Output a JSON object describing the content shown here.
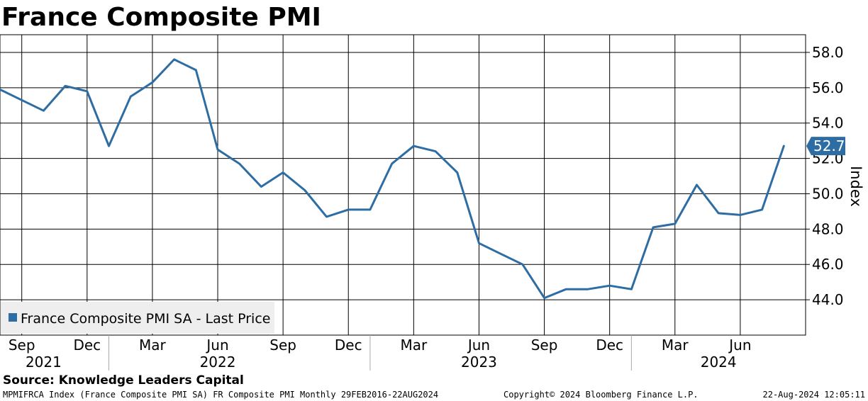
{
  "chart_data": {
    "type": "line",
    "title": "France Composite PMI",
    "ylabel": "Index",
    "ylim": [
      42.0,
      59.0
    ],
    "y_ticks": [
      "58.0",
      "56.0",
      "54.0",
      "52.0",
      "50.0",
      "48.0",
      "46.0",
      "44.0"
    ],
    "x_range": [
      "2021-08",
      "2024-09"
    ],
    "x_month_ticks": [
      {
        "date": "2021-09",
        "label": "Sep"
      },
      {
        "date": "2021-12",
        "label": "Dec"
      },
      {
        "date": "2022-03",
        "label": "Mar"
      },
      {
        "date": "2022-06",
        "label": "Jun"
      },
      {
        "date": "2022-09",
        "label": "Sep"
      },
      {
        "date": "2022-12",
        "label": "Dec"
      },
      {
        "date": "2023-03",
        "label": "Mar"
      },
      {
        "date": "2023-06",
        "label": "Jun"
      },
      {
        "date": "2023-09",
        "label": "Sep"
      },
      {
        "date": "2023-12",
        "label": "Dec"
      },
      {
        "date": "2024-03",
        "label": "Mar"
      },
      {
        "date": "2024-06",
        "label": "Jun"
      }
    ],
    "x_year_labels": [
      {
        "label": "2021",
        "center": "2021-10"
      },
      {
        "label": "2022",
        "center": "2022-06"
      },
      {
        "label": "2023",
        "center": "2023-06"
      },
      {
        "label": "2024",
        "center": "2024-05"
      }
    ],
    "x_year_separators": [
      "2022-01",
      "2023-01",
      "2024-01"
    ],
    "grid": true,
    "series": [
      {
        "name": "France Composite PMI SA - Last Price",
        "color": "#2e6da4",
        "points": [
          [
            "2021-08",
            55.9
          ],
          [
            "2021-09",
            55.3
          ],
          [
            "2021-10",
            54.7
          ],
          [
            "2021-11",
            56.1
          ],
          [
            "2021-12",
            55.8
          ],
          [
            "2022-01",
            52.7
          ],
          [
            "2022-02",
            55.5
          ],
          [
            "2022-03",
            56.3
          ],
          [
            "2022-04",
            57.6
          ],
          [
            "2022-05",
            57.0
          ],
          [
            "2022-06",
            52.5
          ],
          [
            "2022-07",
            51.7
          ],
          [
            "2022-08",
            50.4
          ],
          [
            "2022-09",
            51.2
          ],
          [
            "2022-10",
            50.2
          ],
          [
            "2022-11",
            48.7
          ],
          [
            "2022-12",
            49.1
          ],
          [
            "2023-01",
            49.1
          ],
          [
            "2023-02",
            51.7
          ],
          [
            "2023-03",
            52.7
          ],
          [
            "2023-04",
            52.4
          ],
          [
            "2023-05",
            51.2
          ],
          [
            "2023-06",
            47.2
          ],
          [
            "2023-07",
            46.6
          ],
          [
            "2023-08",
            46.0
          ],
          [
            "2023-09",
            44.1
          ],
          [
            "2023-10",
            44.6
          ],
          [
            "2023-11",
            44.6
          ],
          [
            "2023-12",
            44.8
          ],
          [
            "2024-01",
            44.6
          ],
          [
            "2024-02",
            48.1
          ],
          [
            "2024-03",
            48.3
          ],
          [
            "2024-04",
            50.5
          ],
          [
            "2024-05",
            48.9
          ],
          [
            "2024-06",
            48.8
          ],
          [
            "2024-07",
            49.1
          ],
          [
            "2024-08",
            52.7
          ]
        ]
      }
    ],
    "last_value_label": "52.7",
    "legend": {
      "text": "France Composite PMI SA - Last Price",
      "placement": "bottom-left"
    }
  },
  "footer": {
    "source": "Source: Knowledge Leaders Capital",
    "left": "MPMIFRCA Index (France Composite PMI SA) FR Composite PMI  Monthly 29FEB2016-22AUG2024",
    "center": "Copyright© 2024 Bloomberg Finance L.P.",
    "right": "22-Aug-2024 12:05:11"
  }
}
